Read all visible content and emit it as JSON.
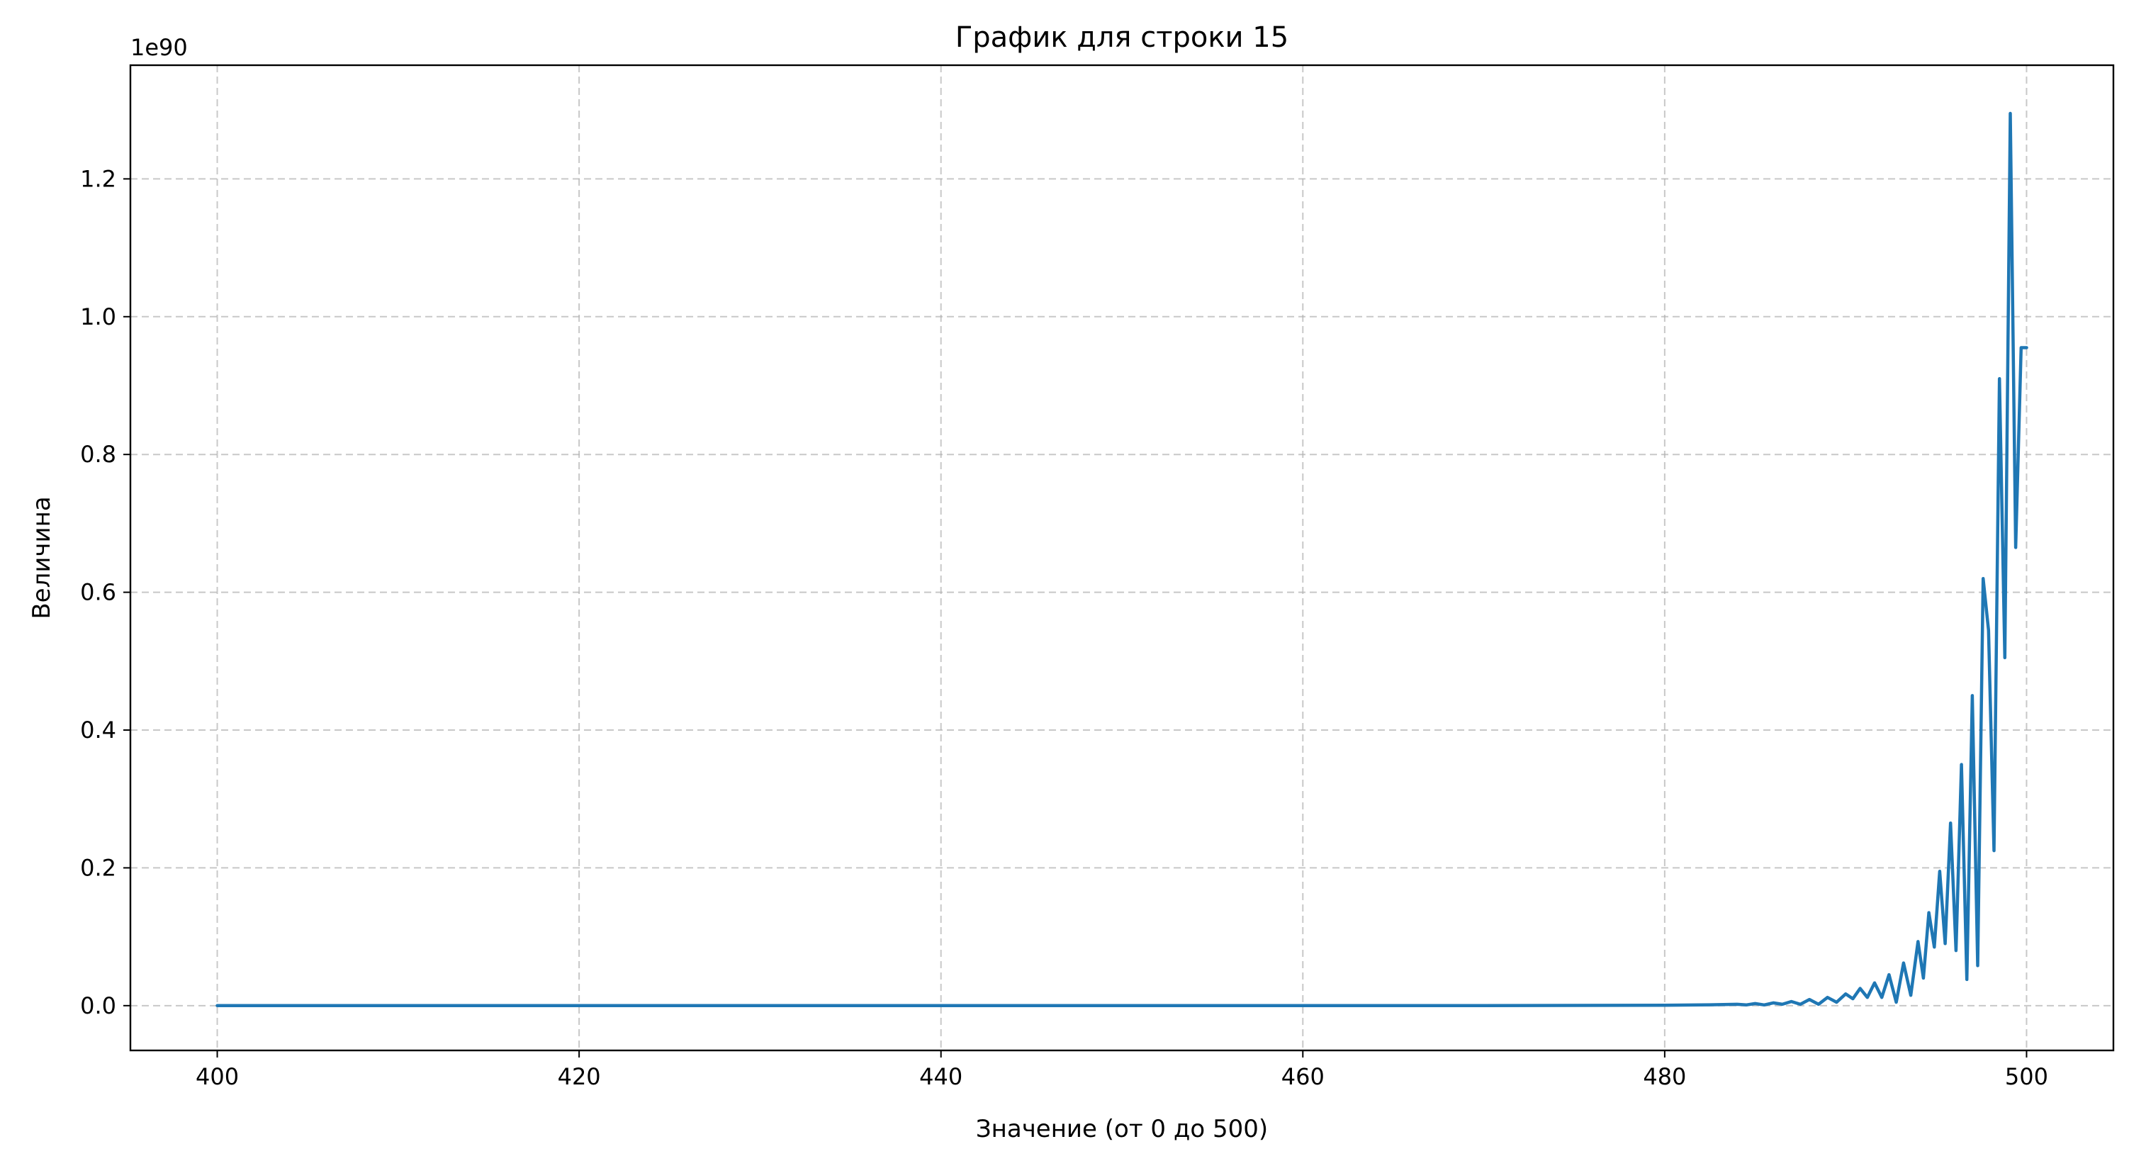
{
  "chart_data": {
    "type": "line",
    "title": "График для строки 15",
    "xlabel": "Значение (от 0 до 500)",
    "ylabel": "Величина",
    "y_offset_label": "1e90",
    "xlim": [
      395.2,
      504.8
    ],
    "ylim": [
      -0.065,
      1.365
    ],
    "x_ticks": [
      400,
      420,
      440,
      460,
      480,
      500
    ],
    "x_tick_labels": [
      "400",
      "420",
      "440",
      "460",
      "480",
      "500"
    ],
    "y_ticks": [
      0.0,
      0.2,
      0.4,
      0.6,
      0.8,
      1.0,
      1.2
    ],
    "y_tick_labels": [
      "0.0",
      "0.2",
      "0.4",
      "0.6",
      "0.8",
      "1.0",
      "1.2"
    ],
    "grid": true,
    "grid_style": "dashed",
    "colors": {
      "series": "#1f77b4",
      "grid": "#b0b0b0",
      "axes": "#000000"
    },
    "series": [
      {
        "x": [
          400,
          470,
          480,
          482,
          483,
          484,
          484.5,
          485,
          485.5,
          486,
          486.5,
          487,
          487.5,
          488,
          488.5,
          489,
          489.5,
          490,
          490.4,
          490.8,
          491.2,
          491.6,
          492,
          492.4,
          492.8,
          493.2,
          493.6,
          494,
          494.3,
          494.6,
          494.9,
          495.2,
          495.5,
          495.8,
          496.1,
          496.4,
          496.7,
          497,
          497.3,
          497.6,
          497.9,
          498.2,
          498.5,
          498.8,
          499.1,
          499.4,
          499.7,
          500
        ],
        "y": [
          0.0,
          0.0,
          0.0005,
          0.001,
          0.0015,
          0.002,
          0.001,
          0.003,
          0.001,
          0.004,
          0.002,
          0.006,
          0.002,
          0.009,
          0.002,
          0.012,
          0.005,
          0.017,
          0.01,
          0.025,
          0.012,
          0.033,
          0.012,
          0.045,
          0.005,
          0.062,
          0.015,
          0.093,
          0.04,
          0.135,
          0.085,
          0.195,
          0.09,
          0.265,
          0.08,
          0.35,
          0.038,
          0.45,
          0.058,
          0.62,
          0.545,
          0.225,
          0.91,
          0.505,
          1.295,
          0.665,
          0.955,
          0.955
        ]
      }
    ]
  }
}
